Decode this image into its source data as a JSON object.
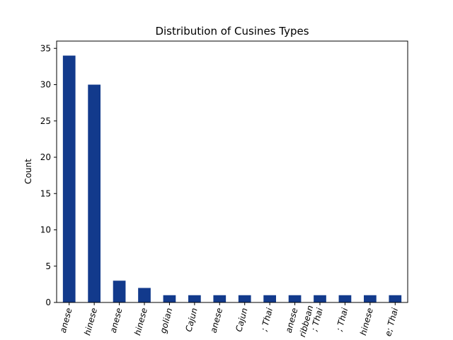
{
  "chart_data": {
    "type": "bar",
    "title": "Distribution of Cusines Types",
    "xlabel": "",
    "ylabel": "Count",
    "ylim": [
      0,
      36
    ],
    "yticks": [
      0,
      5,
      10,
      15,
      20,
      25,
      30,
      35
    ],
    "grid": false,
    "bar_color": "#123a8c",
    "categories": [
      "anese",
      "hinese",
      "anese",
      "hinese",
      "golian",
      "Cajun",
      "anese",
      "Cajun",
      "; Thai",
      "anese",
      "ribbean\n; Thai",
      "; Thai",
      "hinese",
      "e; Thai"
    ],
    "values": [
      34,
      30,
      3,
      2,
      1,
      1,
      1,
      1,
      1,
      1,
      1,
      1,
      1,
      1
    ]
  }
}
